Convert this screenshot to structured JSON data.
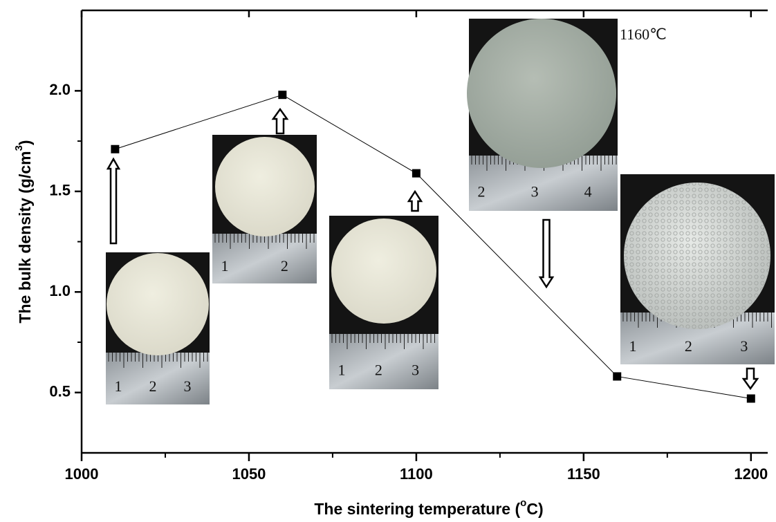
{
  "chart_data": {
    "type": "line",
    "xlabel": [
      "The sintering temperature (",
      "o",
      "C)"
    ],
    "ylabel": [
      "The bulk density (g/cm",
      "3",
      ")"
    ],
    "x": [
      1010,
      1060,
      1100,
      1160,
      1200
    ],
    "series": [
      {
        "color": "#000000",
        "values": [
          1.71,
          1.98,
          1.59,
          0.58,
          0.47
        ]
      }
    ],
    "xlim": [
      1000,
      1205
    ],
    "xticks": [
      1000,
      1050,
      1100,
      1150,
      1200
    ],
    "ylim": [
      0.2,
      2.4
    ],
    "yticks": [
      {
        "value": 2.0,
        "label": "2.0"
      },
      1.5,
      {
        "value": 1.0,
        "label": "1.0"
      },
      0.5
    ],
    "insets": [
      {
        "ruler": [
          1,
          2,
          3
        ]
      },
      {
        "ruler": [
          1,
          2
        ]
      },
      {
        "ruler": [
          1,
          2,
          3
        ]
      },
      {
        "ruler": [
          2,
          3,
          4
        ],
        "label": "1160℃"
      },
      {
        "ruler": [
          1,
          2,
          3
        ]
      }
    ]
  }
}
